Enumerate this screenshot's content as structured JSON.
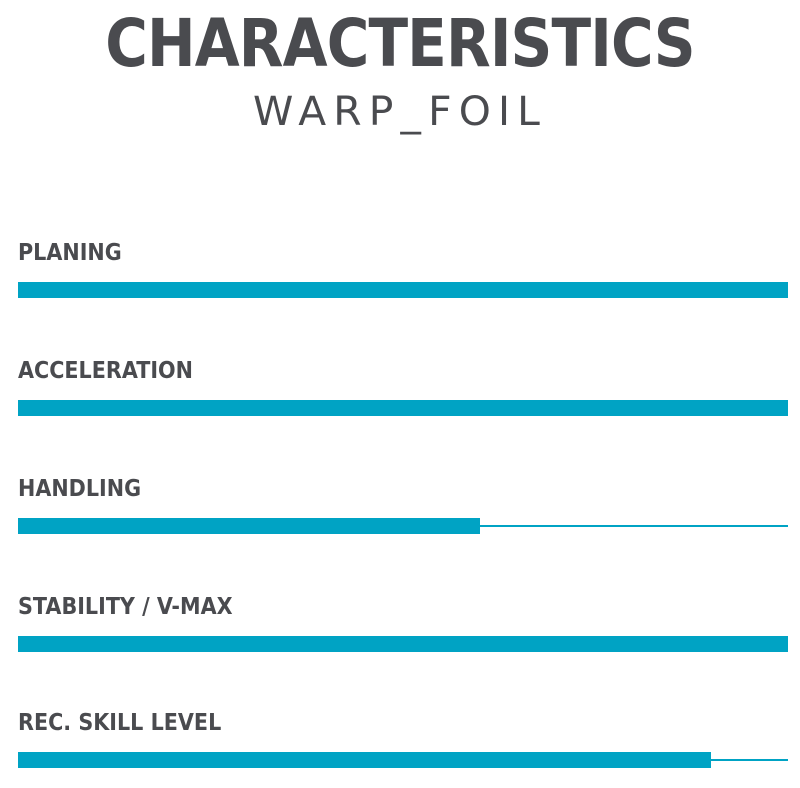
{
  "header": {
    "title": "CHARACTERISTICS",
    "subtitle": "WARP_FOIL"
  },
  "colors": {
    "text": "#4a4b4f",
    "bar": "#00a3c4",
    "background": "#ffffff"
  },
  "stats": [
    {
      "label": "PLANING",
      "fraction": 1.0
    },
    {
      "label": "ACCELERATION",
      "fraction": 1.0
    },
    {
      "label": "HANDLING",
      "fraction": 0.6
    },
    {
      "label": "STABILITY / V-MAX",
      "fraction": 1.0
    },
    {
      "label": "REC. SKILL LEVEL",
      "fraction": 0.9
    }
  ]
}
